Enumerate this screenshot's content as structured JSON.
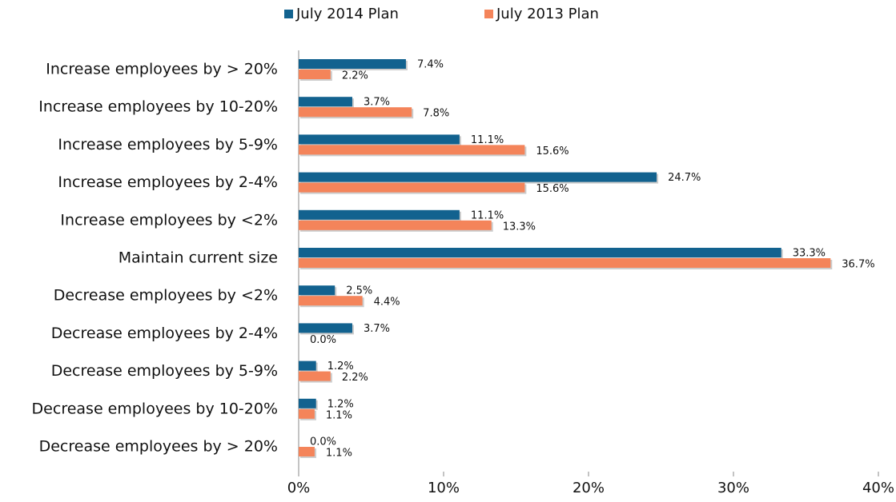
{
  "chart_data": {
    "type": "hbar",
    "categories": [
      "Increase employees by > 20%",
      "Increase employees by 10-20%",
      "Increase employees by 5-9%",
      "Increase employees by 2-4%",
      "Increase employees by <2%",
      "Maintain current size",
      "Decrease employees by <2%",
      "Decrease employees by 2-4%",
      "Decrease employees by 5-9%",
      "Decrease employees by 10-20%",
      "Decrease employees by > 20%"
    ],
    "series": [
      {
        "name": "July 2014 Plan",
        "color": "#12628f",
        "values": [
          7.4,
          3.7,
          11.1,
          24.7,
          11.1,
          33.3,
          2.5,
          3.7,
          1.2,
          1.2,
          0.0
        ],
        "value_labels": [
          "7.4%",
          "3.7%",
          "11.1%",
          "24.7%",
          "11.1%",
          "33.3%",
          "2.5%",
          "3.7%",
          "1.2%",
          "1.2%",
          "0.0%"
        ]
      },
      {
        "name": "July 2013 Plan",
        "color": "#f4845a",
        "values": [
          2.2,
          7.8,
          15.6,
          15.6,
          13.3,
          36.7,
          4.4,
          0.0,
          2.2,
          1.1,
          1.1
        ],
        "value_labels": [
          "2.2%",
          "7.8%",
          "15.6%",
          "15.6%",
          "13.3%",
          "36.7%",
          "4.4%",
          "0.0%",
          "2.2%",
          "1.1%",
          "1.1%"
        ]
      }
    ],
    "xlim": [
      0,
      40
    ],
    "xticks": [
      {
        "value": 0,
        "label": "0%"
      },
      {
        "value": 10,
        "label": "10%"
      },
      {
        "value": 20,
        "label": "20%"
      },
      {
        "value": 30,
        "label": "30%"
      },
      {
        "value": 40,
        "label": "40%"
      }
    ],
    "legend": "top"
  }
}
